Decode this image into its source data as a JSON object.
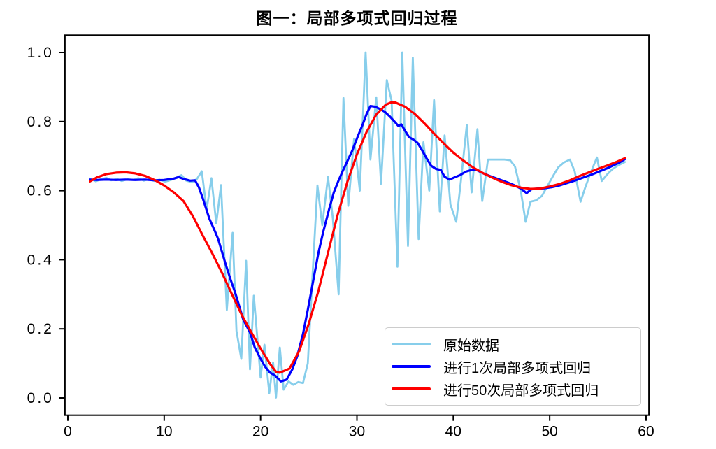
{
  "title": "图一：局部多项式回归过程",
  "colors": {
    "background": "#FFFFFF",
    "axis": "#000000",
    "raw": "#87CEEB",
    "fit1": "#0000FF",
    "fit50": "#FF0000",
    "legend_border": "#CCCCCC"
  },
  "legend": {
    "entries": [
      {
        "label": "原始数据",
        "color": "#87CEEB"
      },
      {
        "label": "进行1次局部多项式回归",
        "color": "#0000FF"
      },
      {
        "label": "进行50次局部多项式回归",
        "color": "#FF0000"
      }
    ]
  },
  "chart_data": {
    "type": "line",
    "title": "图一：局部多项式回归过程",
    "xlabel": "",
    "ylabel": "",
    "xlim": [
      -0.3,
      60.3
    ],
    "ylim": [
      -0.05,
      1.05
    ],
    "x_ticks": [
      0,
      10,
      20,
      30,
      40,
      50,
      60
    ],
    "y_ticks": [
      0.0,
      0.2,
      0.4,
      0.6,
      0.8,
      1.0
    ],
    "grid": false,
    "legend_position": "lower right",
    "series": [
      {
        "name": "原始数据",
        "color": "#87CEEB",
        "linewidth": 2.8,
        "points": [
          [
            2.3,
            0.635
          ],
          [
            2.9,
            0.627
          ],
          [
            3.4,
            0.633
          ],
          [
            4.0,
            0.637
          ],
          [
            4.5,
            0.63
          ],
          [
            5.1,
            0.634
          ],
          [
            5.6,
            0.628
          ],
          [
            6.2,
            0.633
          ],
          [
            6.8,
            0.631
          ],
          [
            7.3,
            0.636
          ],
          [
            7.9,
            0.629
          ],
          [
            8.4,
            0.633
          ],
          [
            9.0,
            0.628
          ],
          [
            9.5,
            0.632
          ],
          [
            10.1,
            0.626
          ],
          [
            10.7,
            0.631
          ],
          [
            11.2,
            0.637
          ],
          [
            11.8,
            0.645
          ],
          [
            12.3,
            0.629
          ],
          [
            12.9,
            0.624
          ],
          [
            13.4,
            0.634
          ],
          [
            13.9,
            0.656
          ],
          [
            14.4,
            0.545
          ],
          [
            14.9,
            0.636
          ],
          [
            15.4,
            0.505
          ],
          [
            15.9,
            0.616
          ],
          [
            16.5,
            0.255
          ],
          [
            17.1,
            0.478
          ],
          [
            17.5,
            0.194
          ],
          [
            18.0,
            0.113
          ],
          [
            18.5,
            0.397
          ],
          [
            18.9,
            0.083
          ],
          [
            19.3,
            0.296
          ],
          [
            20.0,
            0.059
          ],
          [
            20.4,
            0.154
          ],
          [
            20.9,
            0.014
          ],
          [
            21.3,
            0.103
          ],
          [
            21.6,
            0.001
          ],
          [
            22.0,
            0.146
          ],
          [
            22.4,
            0.024
          ],
          [
            22.9,
            0.048
          ],
          [
            23.4,
            0.038
          ],
          [
            23.9,
            0.046
          ],
          [
            24.4,
            0.043
          ],
          [
            24.9,
            0.1
          ],
          [
            25.4,
            0.36
          ],
          [
            25.9,
            0.615
          ],
          [
            26.4,
            0.5
          ],
          [
            27.0,
            0.64
          ],
          [
            27.5,
            0.52
          ],
          [
            28.1,
            0.3
          ],
          [
            28.6,
            0.868
          ],
          [
            29.1,
            0.556
          ],
          [
            29.7,
            0.75
          ],
          [
            30.3,
            0.6
          ],
          [
            30.9,
            1.0
          ],
          [
            31.4,
            0.69
          ],
          [
            32.0,
            0.87
          ],
          [
            32.5,
            0.62
          ],
          [
            33.1,
            0.92
          ],
          [
            33.6,
            0.86
          ],
          [
            34.2,
            0.38
          ],
          [
            34.7,
            1.0
          ],
          [
            35.3,
            0.44
          ],
          [
            35.8,
            0.985
          ],
          [
            36.4,
            0.46
          ],
          [
            36.9,
            0.74
          ],
          [
            37.5,
            0.6
          ],
          [
            38.0,
            0.862
          ],
          [
            38.6,
            0.54
          ],
          [
            39.1,
            0.76
          ],
          [
            39.7,
            0.56
          ],
          [
            40.3,
            0.51
          ],
          [
            40.8,
            0.63
          ],
          [
            41.4,
            0.79
          ],
          [
            41.9,
            0.595
          ],
          [
            42.5,
            0.778
          ],
          [
            43.0,
            0.57
          ],
          [
            43.6,
            0.69
          ],
          [
            44.2,
            0.69
          ],
          [
            44.8,
            0.69
          ],
          [
            45.3,
            0.69
          ],
          [
            45.9,
            0.688
          ],
          [
            46.4,
            0.67
          ],
          [
            47.0,
            0.6
          ],
          [
            47.5,
            0.51
          ],
          [
            48.0,
            0.568
          ],
          [
            48.6,
            0.572
          ],
          [
            49.2,
            0.585
          ],
          [
            49.8,
            0.615
          ],
          [
            50.4,
            0.645
          ],
          [
            50.9,
            0.668
          ],
          [
            51.5,
            0.682
          ],
          [
            52.1,
            0.69
          ],
          [
            52.6,
            0.655
          ],
          [
            53.2,
            0.568
          ],
          [
            53.7,
            0.61
          ],
          [
            54.3,
            0.655
          ],
          [
            54.9,
            0.696
          ],
          [
            55.4,
            0.628
          ],
          [
            56.0,
            0.648
          ],
          [
            56.5,
            0.662
          ],
          [
            57.1,
            0.673
          ],
          [
            57.8,
            0.683
          ]
        ]
      },
      {
        "name": "进行1次局部多项式回归",
        "color": "#0000FF",
        "linewidth": 3.2,
        "points": [
          [
            2.3,
            0.632
          ],
          [
            3,
            0.631
          ],
          [
            4,
            0.632
          ],
          [
            5,
            0.631
          ],
          [
            6,
            0.632
          ],
          [
            7,
            0.631
          ],
          [
            8,
            0.632
          ],
          [
            9,
            0.63
          ],
          [
            10,
            0.631
          ],
          [
            11,
            0.635
          ],
          [
            11.5,
            0.639
          ],
          [
            12,
            0.634
          ],
          [
            12.7,
            0.629
          ],
          [
            13.2,
            0.63
          ],
          [
            13.6,
            0.61
          ],
          [
            14,
            0.578
          ],
          [
            14.7,
            0.518
          ],
          [
            15.3,
            0.48
          ],
          [
            15.6,
            0.46
          ],
          [
            16.1,
            0.413
          ],
          [
            16.4,
            0.385
          ],
          [
            16.9,
            0.342
          ],
          [
            17.4,
            0.302
          ],
          [
            17.9,
            0.255
          ],
          [
            18.2,
            0.227
          ],
          [
            18.9,
            0.19
          ],
          [
            19.4,
            0.146
          ],
          [
            20,
            0.113
          ],
          [
            20.5,
            0.089
          ],
          [
            21,
            0.073
          ],
          [
            21.5,
            0.065
          ],
          [
            22.1,
            0.048
          ],
          [
            22.7,
            0.053
          ],
          [
            23.3,
            0.083
          ],
          [
            23.8,
            0.12
          ],
          [
            24.4,
            0.185
          ],
          [
            24.9,
            0.255
          ],
          [
            25.4,
            0.33
          ],
          [
            26,
            0.42
          ],
          [
            26.5,
            0.48
          ],
          [
            27.1,
            0.545
          ],
          [
            27.6,
            0.595
          ],
          [
            28.1,
            0.63
          ],
          [
            28.5,
            0.655
          ],
          [
            29,
            0.685
          ],
          [
            29.5,
            0.715
          ],
          [
            30.1,
            0.758
          ],
          [
            30.6,
            0.792
          ],
          [
            31,
            0.822
          ],
          [
            31.4,
            0.845
          ],
          [
            31.9,
            0.843
          ],
          [
            32.4,
            0.836
          ],
          [
            32.9,
            0.828
          ],
          [
            33.4,
            0.815
          ],
          [
            33.9,
            0.8
          ],
          [
            34.3,
            0.787
          ],
          [
            34.6,
            0.792
          ],
          [
            35,
            0.773
          ],
          [
            35.4,
            0.755
          ],
          [
            35.9,
            0.747
          ],
          [
            36.3,
            0.738
          ],
          [
            36.8,
            0.715
          ],
          [
            37.2,
            0.695
          ],
          [
            37.7,
            0.672
          ],
          [
            38.2,
            0.663
          ],
          [
            38.7,
            0.66
          ],
          [
            39.1,
            0.64
          ],
          [
            39.6,
            0.632
          ],
          [
            40.1,
            0.638
          ],
          [
            40.7,
            0.645
          ],
          [
            41.3,
            0.655
          ],
          [
            41.9,
            0.66
          ],
          [
            42.4,
            0.66
          ],
          [
            43.2,
            0.649
          ],
          [
            44,
            0.64
          ],
          [
            44.8,
            0.632
          ],
          [
            45.6,
            0.624
          ],
          [
            46.3,
            0.616
          ],
          [
            47,
            0.606
          ],
          [
            47.6,
            0.593
          ],
          [
            48.1,
            0.604
          ],
          [
            48.8,
            0.606
          ],
          [
            49.5,
            0.607
          ],
          [
            50.2,
            0.61
          ],
          [
            51,
            0.615
          ],
          [
            51.8,
            0.622
          ],
          [
            52.7,
            0.63
          ],
          [
            53.6,
            0.639
          ],
          [
            54.4,
            0.647
          ],
          [
            55.2,
            0.656
          ],
          [
            55.9,
            0.664
          ],
          [
            56.6,
            0.673
          ],
          [
            57.2,
            0.681
          ],
          [
            57.8,
            0.691
          ]
        ]
      },
      {
        "name": "进行50次局部多项式回归",
        "color": "#FF0000",
        "linewidth": 3.2,
        "points": [
          [
            2.3,
            0.627
          ],
          [
            3,
            0.638
          ],
          [
            4,
            0.648
          ],
          [
            5,
            0.652
          ],
          [
            6,
            0.653
          ],
          [
            7,
            0.65
          ],
          [
            8,
            0.643
          ],
          [
            9,
            0.631
          ],
          [
            10,
            0.615
          ],
          [
            11,
            0.595
          ],
          [
            12,
            0.57
          ],
          [
            13,
            0.525
          ],
          [
            14,
            0.47
          ],
          [
            15,
            0.418
          ],
          [
            16,
            0.362
          ],
          [
            17,
            0.302
          ],
          [
            18,
            0.243
          ],
          [
            19,
            0.192
          ],
          [
            20,
            0.143
          ],
          [
            21,
            0.098
          ],
          [
            21.6,
            0.076
          ],
          [
            22,
            0.073
          ],
          [
            23,
            0.085
          ],
          [
            24,
            0.135
          ],
          [
            25,
            0.215
          ],
          [
            26,
            0.31
          ],
          [
            27,
            0.42
          ],
          [
            28,
            0.53
          ],
          [
            29,
            0.625
          ],
          [
            30,
            0.705
          ],
          [
            31,
            0.77
          ],
          [
            32,
            0.82
          ],
          [
            33,
            0.849
          ],
          [
            33.6,
            0.856
          ],
          [
            34,
            0.855
          ],
          [
            35,
            0.843
          ],
          [
            36,
            0.822
          ],
          [
            37,
            0.795
          ],
          [
            38,
            0.765
          ],
          [
            39,
            0.737
          ],
          [
            40,
            0.71
          ],
          [
            41,
            0.688
          ],
          [
            42,
            0.668
          ],
          [
            43,
            0.652
          ],
          [
            44,
            0.638
          ],
          [
            45,
            0.626
          ],
          [
            46,
            0.616
          ],
          [
            47,
            0.609
          ],
          [
            48,
            0.605
          ],
          [
            49,
            0.606
          ],
          [
            50,
            0.612
          ],
          [
            51,
            0.619
          ],
          [
            52,
            0.629
          ],
          [
            53,
            0.641
          ],
          [
            54,
            0.652
          ],
          [
            55,
            0.663
          ],
          [
            56,
            0.673
          ],
          [
            57,
            0.684
          ],
          [
            57.8,
            0.694
          ]
        ]
      }
    ]
  }
}
